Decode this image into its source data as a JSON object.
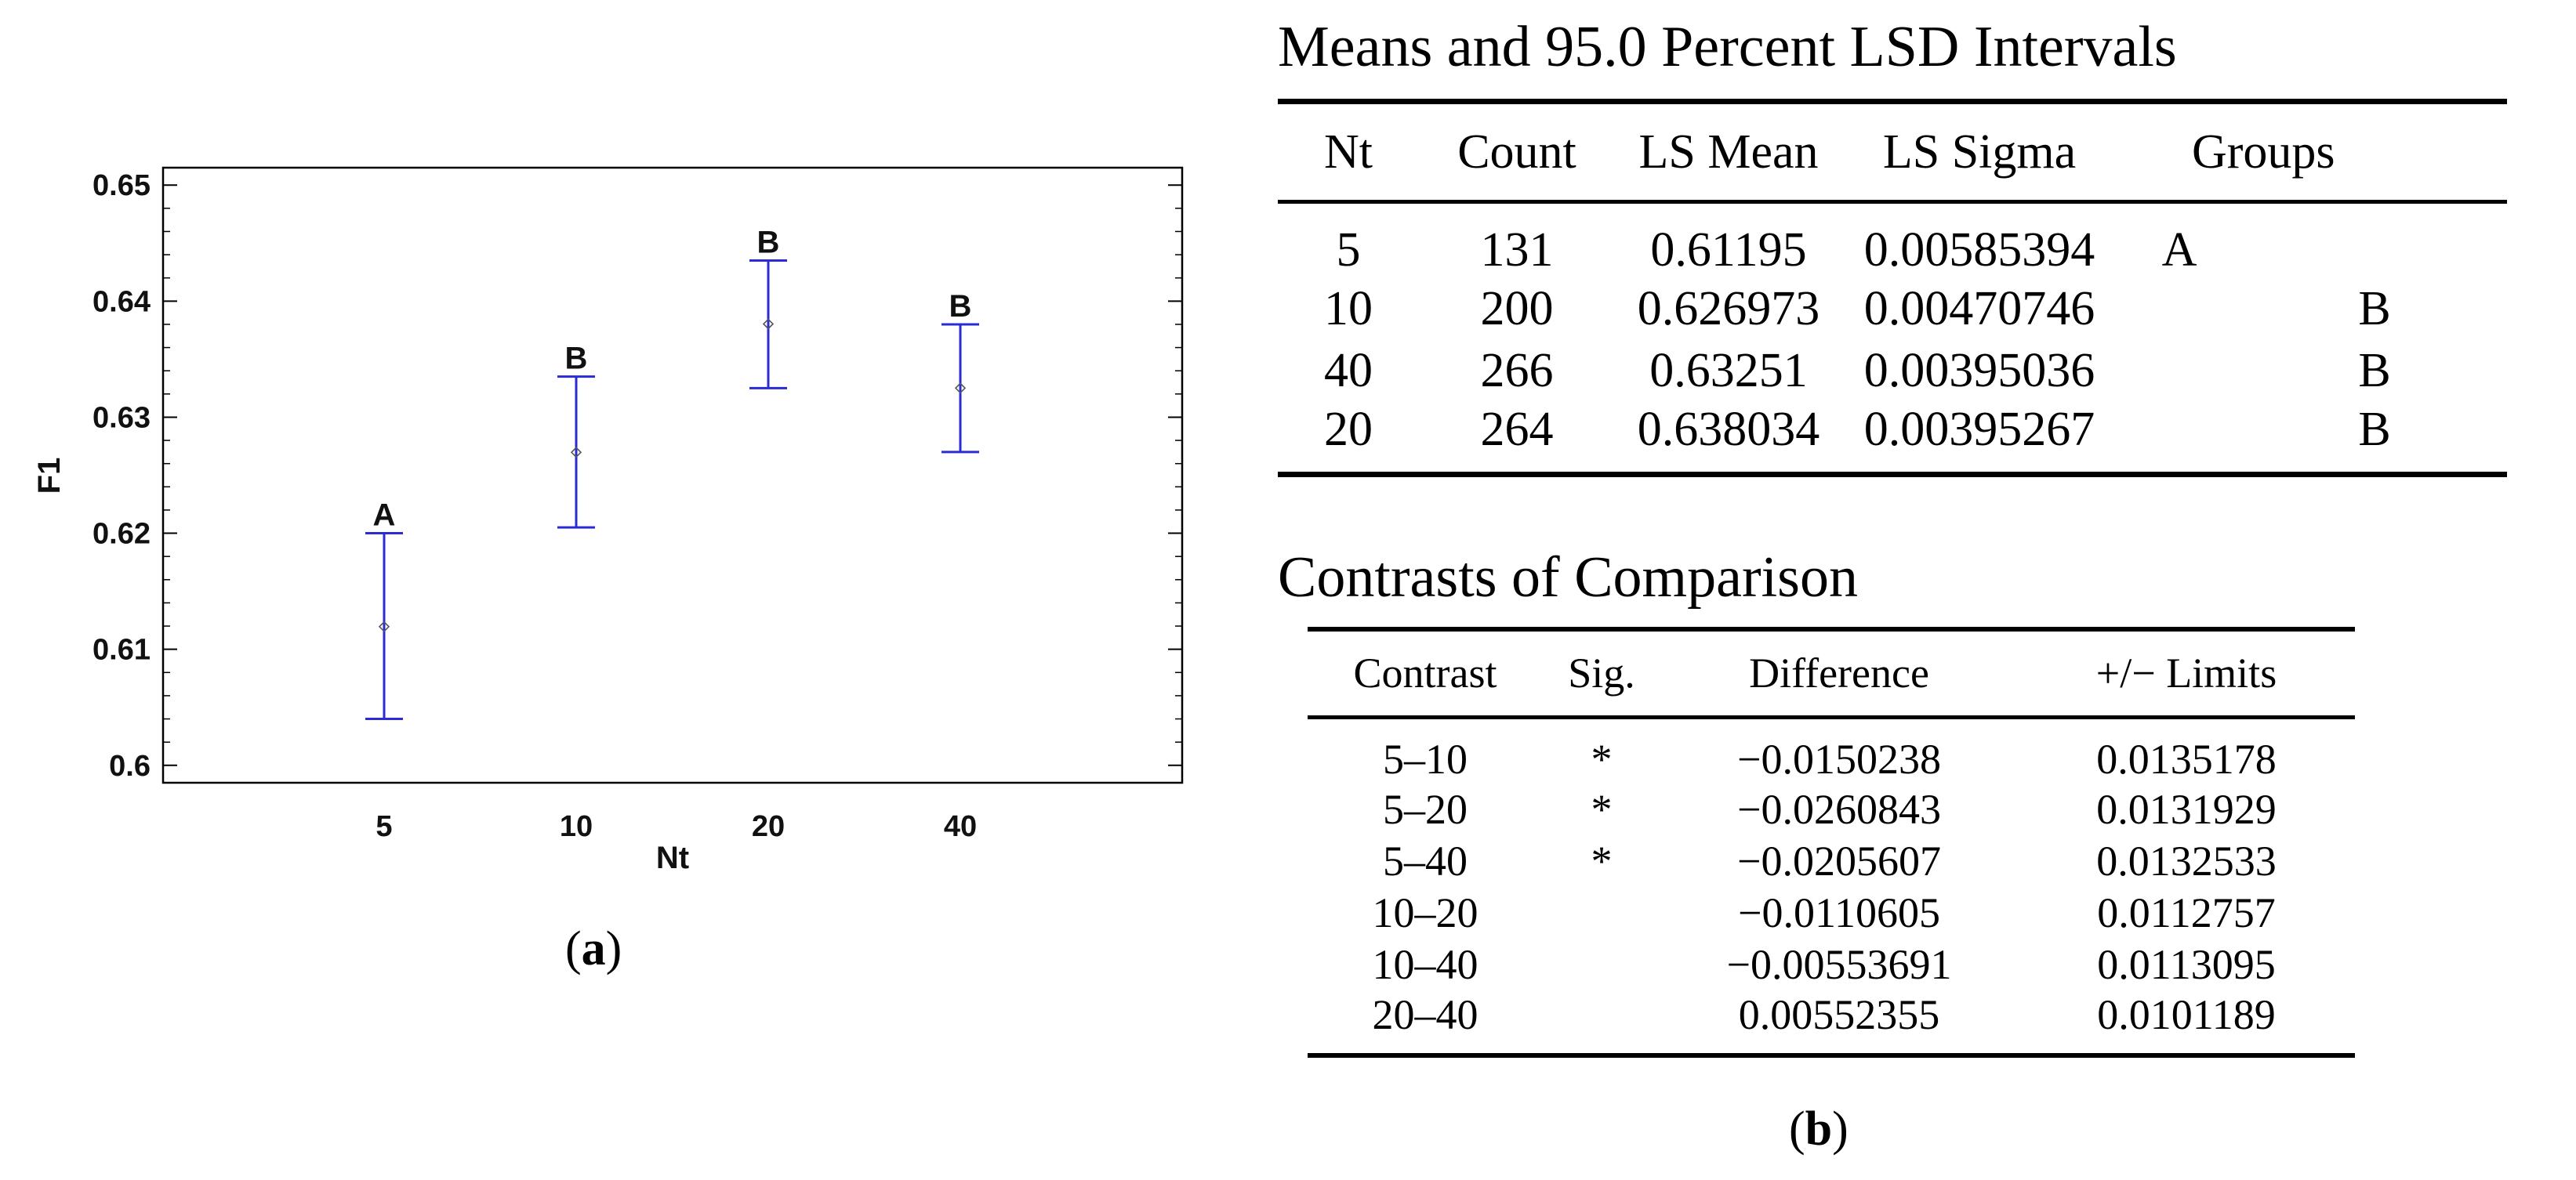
{
  "chart_data": {
    "type": "scatter",
    "subtype": "means-with-lsd-intervals",
    "title": "",
    "xlabel": "Nt",
    "ylabel": "F1",
    "categories": [
      "5",
      "10",
      "20",
      "40"
    ],
    "means": [
      0.61195,
      0.626973,
      0.638034,
      0.63251
    ],
    "lower": [
      0.604,
      0.6205,
      0.6325,
      0.627
    ],
    "upper": [
      0.62,
      0.6335,
      0.6435,
      0.638
    ],
    "groups": [
      "A",
      "B",
      "B",
      "B"
    ],
    "ylim": [
      0.5985,
      0.6515
    ],
    "yticks": [
      0.6,
      0.61,
      0.62,
      0.63,
      0.64,
      0.65
    ],
    "ytick_labels": [
      "0.6",
      "0.61",
      "0.62",
      "0.63",
      "0.64",
      "0.65"
    ],
    "grid": false,
    "interval_color": "#2b2bd6",
    "marker_color": "#555555"
  },
  "captions": {
    "a": "a",
    "b": "b"
  },
  "means_table": {
    "title": "Means and 95.0 Percent LSD Intervals",
    "headers": [
      "Nt",
      "Count",
      "LS Mean",
      "LS Sigma",
      "Groups"
    ],
    "rows": [
      {
        "nt": "5",
        "count": "131",
        "mean": "0.61195",
        "sigma": "0.00585394",
        "g1": "A",
        "g2": ""
      },
      {
        "nt": "10",
        "count": "200",
        "mean": "0.626973",
        "sigma": "0.00470746",
        "g1": "",
        "g2": "B"
      },
      {
        "nt": "40",
        "count": "266",
        "mean": "0.63251",
        "sigma": "0.00395036",
        "g1": "",
        "g2": "B"
      },
      {
        "nt": "20",
        "count": "264",
        "mean": "0.638034",
        "sigma": "0.00395267",
        "g1": "",
        "g2": "B"
      }
    ]
  },
  "contrasts_table": {
    "title": "Contrasts of Comparison",
    "headers": [
      "Contrast",
      "Sig.",
      "Difference",
      "+/− Limits"
    ],
    "rows": [
      {
        "contrast": "5–10",
        "sig": "*",
        "difference": "−0.0150238",
        "limits": "0.0135178"
      },
      {
        "contrast": "5–20",
        "sig": "*",
        "difference": "−0.0260843",
        "limits": "0.0131929"
      },
      {
        "contrast": "5–40",
        "sig": "*",
        "difference": "−0.0205607",
        "limits": "0.0132533"
      },
      {
        "contrast": "10–20",
        "sig": "",
        "difference": "−0.0110605",
        "limits": "0.0112757"
      },
      {
        "contrast": "10–40",
        "sig": "",
        "difference": "−0.00553691",
        "limits": "0.0113095"
      },
      {
        "contrast": "20–40",
        "sig": "",
        "difference": "0.00552355",
        "limits": "0.0101189"
      }
    ]
  }
}
